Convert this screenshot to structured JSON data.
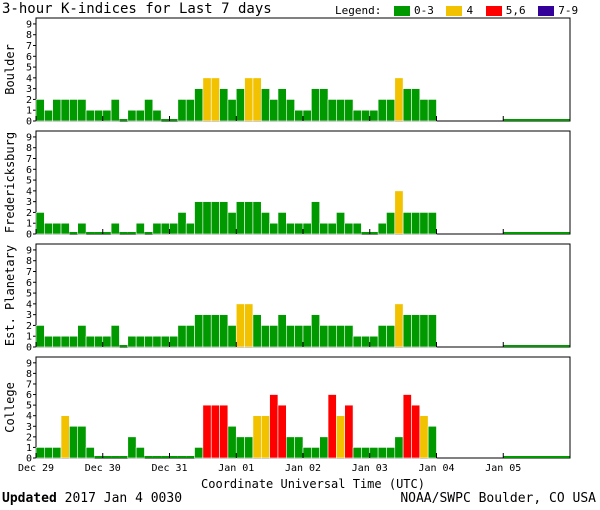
{
  "title": "3-hour K-indices for Last 7 days",
  "legend": {
    "label": "Legend:",
    "items": [
      {
        "label": "0-3",
        "color": "#009900"
      },
      {
        "label": "4",
        "color": "#f2c200"
      },
      {
        "label": "5,6",
        "color": "#ff0000"
      },
      {
        "label": "7-9",
        "color": "#330099"
      }
    ]
  },
  "footer": {
    "updated_label": "Updated",
    "updated_value": "2017 Jan  4 0030",
    "credit": "NOAA/SWPC Boulder, CO USA"
  },
  "chart_data": {
    "type": "bar",
    "xlabel": "Coordinate Universal Time (UTC)",
    "x_ticks": [
      "Dec 29",
      "Dec 30",
      "Dec 31",
      "Jan 01",
      "Jan 02",
      "Jan 03",
      "Jan 04",
      "Jan 05"
    ],
    "y_ticks": [
      0,
      1,
      2,
      3,
      4,
      5,
      6,
      7,
      8,
      9
    ],
    "ylim": [
      0,
      9
    ],
    "bins_per_day": 8,
    "days": 7,
    "grid": false,
    "color_scale": {
      "0-3": "#009900",
      "4": "#f2c200",
      "5,6": "#ff0000",
      "7-9": "#330099"
    },
    "series": [
      {
        "name": "Boulder",
        "values": [
          2,
          1,
          2,
          2,
          2,
          2,
          1,
          1,
          1,
          2,
          0,
          1,
          1,
          2,
          1,
          0,
          0,
          2,
          2,
          3,
          4,
          4,
          3,
          2,
          3,
          4,
          4,
          3,
          2,
          3,
          2,
          1,
          1,
          3,
          3,
          2,
          2,
          2,
          1,
          1,
          1,
          2,
          2,
          4,
          3,
          3,
          2,
          2
        ]
      },
      {
        "name": "Fredericksburg",
        "values": [
          2,
          1,
          1,
          1,
          0,
          1,
          0,
          0,
          0,
          1,
          0,
          0,
          1,
          0,
          1,
          1,
          1,
          2,
          1,
          3,
          3,
          3,
          3,
          2,
          3,
          3,
          3,
          2,
          1,
          2,
          1,
          1,
          1,
          3,
          1,
          1,
          2,
          1,
          1,
          0,
          0,
          1,
          2,
          4,
          2,
          2,
          2,
          2
        ]
      },
      {
        "name": "Est. Planetary",
        "values": [
          2,
          1,
          1,
          1,
          1,
          2,
          1,
          1,
          1,
          2,
          0,
          1,
          1,
          1,
          1,
          1,
          1,
          2,
          2,
          3,
          3,
          3,
          3,
          2,
          4,
          4,
          3,
          2,
          2,
          3,
          2,
          2,
          2,
          3,
          2,
          2,
          2,
          2,
          1,
          1,
          1,
          2,
          2,
          4,
          3,
          3,
          3,
          3
        ]
      },
      {
        "name": "College",
        "values": [
          1,
          1,
          1,
          4,
          3,
          3,
          1,
          0,
          0,
          0,
          0,
          2,
          1,
          0,
          0,
          0,
          0,
          0,
          0,
          1,
          5,
          5,
          5,
          3,
          2,
          2,
          4,
          4,
          6,
          5,
          2,
          2,
          1,
          1,
          2,
          6,
          4,
          5,
          1,
          1,
          1,
          1,
          1,
          2,
          6,
          5,
          4,
          3
        ]
      }
    ]
  }
}
